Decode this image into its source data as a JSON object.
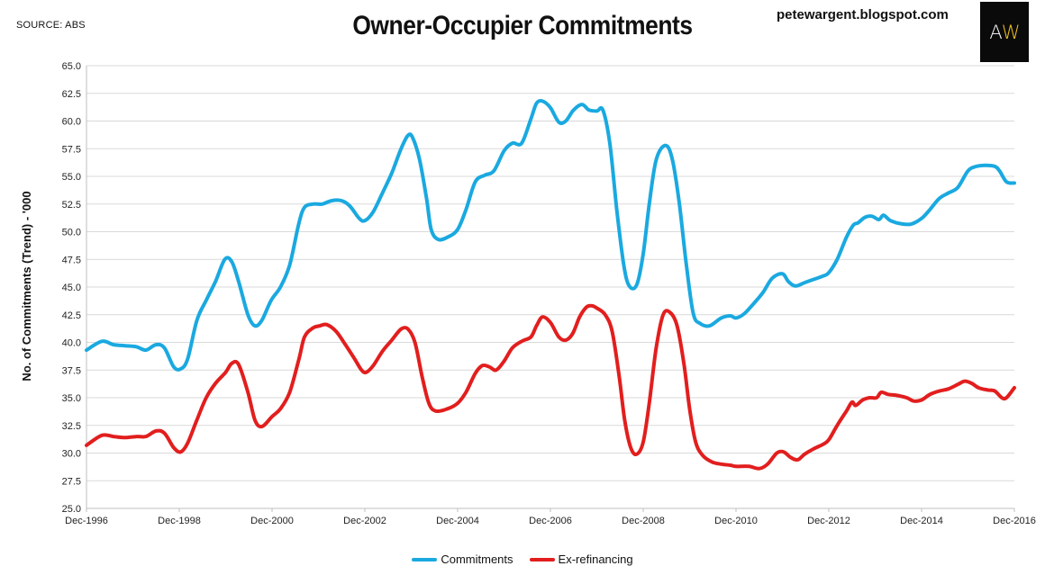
{
  "header": {
    "source": "SOURCE: ABS",
    "title": "Owner-Occupier Commitments",
    "blog": "petewargent.blogspot.com",
    "logo_a": "A",
    "logo_w": "W"
  },
  "chart_data": {
    "type": "line",
    "title": "Owner-Occupier Commitments",
    "ylabel": "No. of Commitments (Trend) - '000",
    "xlabel": "",
    "ylim": [
      25.0,
      65.0
    ],
    "yticks": [
      "25.0",
      "27.5",
      "30.0",
      "32.5",
      "35.0",
      "37.5",
      "40.0",
      "42.5",
      "45.0",
      "47.5",
      "50.0",
      "52.5",
      "55.0",
      "57.5",
      "60.0",
      "62.5",
      "65.0"
    ],
    "xticks": [
      "Dec-1996",
      "Dec-1998",
      "Dec-2000",
      "Dec-2002",
      "Dec-2004",
      "Dec-2006",
      "Dec-2008",
      "Dec-2010",
      "Dec-2012",
      "Dec-2014",
      "Dec-2016"
    ],
    "xrange": [
      1996.92,
      2016.92
    ],
    "grid": "horizontal",
    "legend_position": "bottom",
    "series": [
      {
        "name": "Commitments",
        "color": "#1aa9e0",
        "points": [
          [
            1996.92,
            39.3
          ],
          [
            1997.25,
            40.1
          ],
          [
            1997.5,
            39.8
          ],
          [
            1997.75,
            39.7
          ],
          [
            1998.0,
            39.6
          ],
          [
            1998.2,
            39.3
          ],
          [
            1998.42,
            39.8
          ],
          [
            1998.6,
            39.5
          ],
          [
            1998.8,
            37.8
          ],
          [
            1998.95,
            37.6
          ],
          [
            1999.1,
            38.5
          ],
          [
            1999.3,
            42.0
          ],
          [
            1999.5,
            43.8
          ],
          [
            1999.7,
            45.5
          ],
          [
            1999.9,
            47.5
          ],
          [
            2000.05,
            47.3
          ],
          [
            2000.2,
            45.5
          ],
          [
            2000.4,
            42.5
          ],
          [
            2000.55,
            41.5
          ],
          [
            2000.7,
            42.0
          ],
          [
            2000.9,
            43.8
          ],
          [
            2001.1,
            45.0
          ],
          [
            2001.3,
            47.0
          ],
          [
            2001.5,
            50.8
          ],
          [
            2001.62,
            52.2
          ],
          [
            2001.8,
            52.5
          ],
          [
            2002.0,
            52.5
          ],
          [
            2002.2,
            52.8
          ],
          [
            2002.42,
            52.8
          ],
          [
            2002.6,
            52.3
          ],
          [
            2002.8,
            51.2
          ],
          [
            2002.92,
            51.0
          ],
          [
            2003.1,
            51.8
          ],
          [
            2003.3,
            53.5
          ],
          [
            2003.5,
            55.3
          ],
          [
            2003.7,
            57.5
          ],
          [
            2003.85,
            58.7
          ],
          [
            2003.95,
            58.5
          ],
          [
            2004.1,
            56.5
          ],
          [
            2004.25,
            53.0
          ],
          [
            2004.35,
            50.2
          ],
          [
            2004.5,
            49.3
          ],
          [
            2004.7,
            49.5
          ],
          [
            2004.92,
            50.2
          ],
          [
            2005.1,
            52.0
          ],
          [
            2005.3,
            54.5
          ],
          [
            2005.5,
            55.1
          ],
          [
            2005.7,
            55.5
          ],
          [
            2005.92,
            57.3
          ],
          [
            2006.1,
            58.0
          ],
          [
            2006.3,
            58.0
          ],
          [
            2006.5,
            60.2
          ],
          [
            2006.62,
            61.6
          ],
          [
            2006.75,
            61.8
          ],
          [
            2006.92,
            61.2
          ],
          [
            2007.1,
            59.9
          ],
          [
            2007.25,
            60.0
          ],
          [
            2007.42,
            61.0
          ],
          [
            2007.6,
            61.5
          ],
          [
            2007.75,
            61.0
          ],
          [
            2007.92,
            60.9
          ],
          [
            2008.05,
            61.0
          ],
          [
            2008.2,
            58.0
          ],
          [
            2008.35,
            52.0
          ],
          [
            2008.5,
            47.0
          ],
          [
            2008.62,
            45.1
          ],
          [
            2008.78,
            45.2
          ],
          [
            2008.92,
            48.0
          ],
          [
            2009.05,
            52.5
          ],
          [
            2009.2,
            56.5
          ],
          [
            2009.4,
            57.8
          ],
          [
            2009.55,
            56.5
          ],
          [
            2009.7,
            52.5
          ],
          [
            2009.85,
            47.0
          ],
          [
            2010.0,
            42.6
          ],
          [
            2010.15,
            41.7
          ],
          [
            2010.35,
            41.5
          ],
          [
            2010.6,
            42.2
          ],
          [
            2010.8,
            42.4
          ],
          [
            2010.92,
            42.2
          ],
          [
            2011.1,
            42.6
          ],
          [
            2011.3,
            43.5
          ],
          [
            2011.5,
            44.5
          ],
          [
            2011.7,
            45.8
          ],
          [
            2011.92,
            46.2
          ],
          [
            2012.05,
            45.5
          ],
          [
            2012.2,
            45.1
          ],
          [
            2012.4,
            45.4
          ],
          [
            2012.6,
            45.7
          ],
          [
            2012.8,
            46.0
          ],
          [
            2012.92,
            46.3
          ],
          [
            2013.1,
            47.5
          ],
          [
            2013.3,
            49.5
          ],
          [
            2013.45,
            50.6
          ],
          [
            2013.55,
            50.8
          ],
          [
            2013.7,
            51.3
          ],
          [
            2013.85,
            51.4
          ],
          [
            2014.0,
            51.1
          ],
          [
            2014.1,
            51.5
          ],
          [
            2014.25,
            51.0
          ],
          [
            2014.5,
            50.7
          ],
          [
            2014.7,
            50.7
          ],
          [
            2014.92,
            51.2
          ],
          [
            2015.1,
            52.0
          ],
          [
            2015.3,
            53.0
          ],
          [
            2015.5,
            53.5
          ],
          [
            2015.7,
            54.0
          ],
          [
            2015.92,
            55.5
          ],
          [
            2016.1,
            55.9
          ],
          [
            2016.3,
            56.0
          ],
          [
            2016.5,
            55.9
          ],
          [
            2016.6,
            55.5
          ],
          [
            2016.75,
            54.5
          ],
          [
            2016.92,
            54.4
          ]
        ]
      },
      {
        "name": "Ex-refinancing",
        "color": "#e21e1e",
        "points": [
          [
            1996.92,
            30.7
          ],
          [
            1997.25,
            31.6
          ],
          [
            1997.5,
            31.5
          ],
          [
            1997.75,
            31.4
          ],
          [
            1998.0,
            31.5
          ],
          [
            1998.2,
            31.5
          ],
          [
            1998.42,
            32.0
          ],
          [
            1998.6,
            31.8
          ],
          [
            1998.8,
            30.5
          ],
          [
            1998.95,
            30.1
          ],
          [
            1999.1,
            30.9
          ],
          [
            1999.3,
            33.0
          ],
          [
            1999.5,
            35.0
          ],
          [
            1999.7,
            36.3
          ],
          [
            1999.92,
            37.3
          ],
          [
            2000.05,
            38.1
          ],
          [
            2000.2,
            38.0
          ],
          [
            2000.4,
            35.5
          ],
          [
            2000.55,
            33.0
          ],
          [
            2000.7,
            32.4
          ],
          [
            2000.92,
            33.3
          ],
          [
            2001.1,
            34.0
          ],
          [
            2001.3,
            35.5
          ],
          [
            2001.5,
            38.5
          ],
          [
            2001.62,
            40.5
          ],
          [
            2001.8,
            41.3
          ],
          [
            2001.95,
            41.5
          ],
          [
            2002.1,
            41.6
          ],
          [
            2002.3,
            41.0
          ],
          [
            2002.5,
            39.8
          ],
          [
            2002.7,
            38.5
          ],
          [
            2002.85,
            37.5
          ],
          [
            2002.95,
            37.3
          ],
          [
            2003.1,
            37.9
          ],
          [
            2003.3,
            39.2
          ],
          [
            2003.5,
            40.2
          ],
          [
            2003.7,
            41.2
          ],
          [
            2003.85,
            41.2
          ],
          [
            2004.0,
            40.0
          ],
          [
            2004.15,
            37.0
          ],
          [
            2004.3,
            34.5
          ],
          [
            2004.45,
            33.8
          ],
          [
            2004.7,
            34.0
          ],
          [
            2004.92,
            34.5
          ],
          [
            2005.1,
            35.5
          ],
          [
            2005.3,
            37.2
          ],
          [
            2005.45,
            37.9
          ],
          [
            2005.6,
            37.8
          ],
          [
            2005.75,
            37.5
          ],
          [
            2005.92,
            38.3
          ],
          [
            2006.1,
            39.5
          ],
          [
            2006.3,
            40.1
          ],
          [
            2006.5,
            40.5
          ],
          [
            2006.62,
            41.5
          ],
          [
            2006.75,
            42.3
          ],
          [
            2006.92,
            41.8
          ],
          [
            2007.1,
            40.5
          ],
          [
            2007.25,
            40.2
          ],
          [
            2007.4,
            40.8
          ],
          [
            2007.55,
            42.3
          ],
          [
            2007.7,
            43.2
          ],
          [
            2007.82,
            43.3
          ],
          [
            2007.92,
            43.1
          ],
          [
            2008.1,
            42.5
          ],
          [
            2008.25,
            41.0
          ],
          [
            2008.4,
            37.0
          ],
          [
            2008.52,
            33.0
          ],
          [
            2008.65,
            30.5
          ],
          [
            2008.78,
            29.9
          ],
          [
            2008.92,
            31.0
          ],
          [
            2009.05,
            34.5
          ],
          [
            2009.2,
            39.5
          ],
          [
            2009.35,
            42.5
          ],
          [
            2009.5,
            42.7
          ],
          [
            2009.65,
            41.5
          ],
          [
            2009.8,
            38.0
          ],
          [
            2009.92,
            34.0
          ],
          [
            2010.05,
            31.0
          ],
          [
            2010.2,
            29.8
          ],
          [
            2010.4,
            29.2
          ],
          [
            2010.6,
            29.0
          ],
          [
            2010.8,
            28.9
          ],
          [
            2010.92,
            28.8
          ],
          [
            2011.2,
            28.8
          ],
          [
            2011.42,
            28.6
          ],
          [
            2011.6,
            29.0
          ],
          [
            2011.8,
            30.0
          ],
          [
            2011.95,
            30.1
          ],
          [
            2012.1,
            29.6
          ],
          [
            2012.25,
            29.4
          ],
          [
            2012.4,
            29.9
          ],
          [
            2012.6,
            30.4
          ],
          [
            2012.8,
            30.8
          ],
          [
            2012.92,
            31.2
          ],
          [
            2013.1,
            32.5
          ],
          [
            2013.3,
            33.8
          ],
          [
            2013.42,
            34.6
          ],
          [
            2013.5,
            34.3
          ],
          [
            2013.65,
            34.8
          ],
          [
            2013.8,
            35.0
          ],
          [
            2013.95,
            35.0
          ],
          [
            2014.05,
            35.5
          ],
          [
            2014.2,
            35.3
          ],
          [
            2014.4,
            35.2
          ],
          [
            2014.6,
            35.0
          ],
          [
            2014.75,
            34.7
          ],
          [
            2014.92,
            34.8
          ],
          [
            2015.1,
            35.3
          ],
          [
            2015.3,
            35.6
          ],
          [
            2015.5,
            35.8
          ],
          [
            2015.7,
            36.2
          ],
          [
            2015.85,
            36.5
          ],
          [
            2016.0,
            36.3
          ],
          [
            2016.15,
            35.9
          ],
          [
            2016.35,
            35.7
          ],
          [
            2016.5,
            35.6
          ],
          [
            2016.65,
            35.0
          ],
          [
            2016.75,
            35.0
          ],
          [
            2016.92,
            35.9
          ]
        ]
      }
    ]
  }
}
